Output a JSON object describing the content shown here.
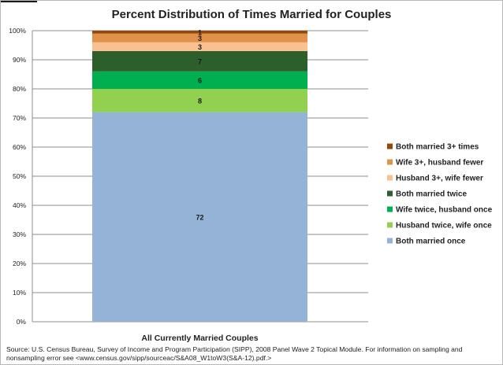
{
  "chart_data": {
    "type": "bar",
    "stacked": true,
    "title": "Percent Distribution of Times Married for Couples",
    "xlabel": "",
    "ylabel": "",
    "categories": [
      "All Currently Married Couples"
    ],
    "ylim": [
      0,
      100
    ],
    "y_ticks": [
      "0%",
      "10%",
      "20%",
      "30%",
      "40%",
      "50%",
      "60%",
      "70%",
      "80%",
      "90%",
      "100%"
    ],
    "grid": true,
    "legend_position": "right",
    "series": [
      {
        "name": "Both married once",
        "values": [
          72
        ],
        "label": "72",
        "color": "#95b3d7"
      },
      {
        "name": "Husband twice, wife once",
        "values": [
          8
        ],
        "label": "8",
        "color": "#92d050"
      },
      {
        "name": "Wife twice, husband once",
        "values": [
          6
        ],
        "label": "6",
        "color": "#00b050"
      },
      {
        "name": "Both married twice",
        "values": [
          7
        ],
        "label": "7",
        "color": "#2d5f2d"
      },
      {
        "name": "Husband 3+, wife fewer",
        "values": [
          3
        ],
        "label": "3",
        "color": "#fac090"
      },
      {
        "name": "Wife 3+, husband fewer",
        "values": [
          3
        ],
        "label": "3",
        "color": "#e0914a"
      },
      {
        "name": "Both married 3+ times",
        "values": [
          1
        ],
        "label": "1",
        "color": "#974806"
      }
    ]
  },
  "source_note": "Source:  U.S. Census Bureau, Survey of Income and Program Participation (SIPP), 2008 Panel Wave 2 Topical Module. For information on sampling and nonsampling error see <www.census.gov/sipp/sourceac/S&A08_W1toW3(S&A-12).pdf.>"
}
